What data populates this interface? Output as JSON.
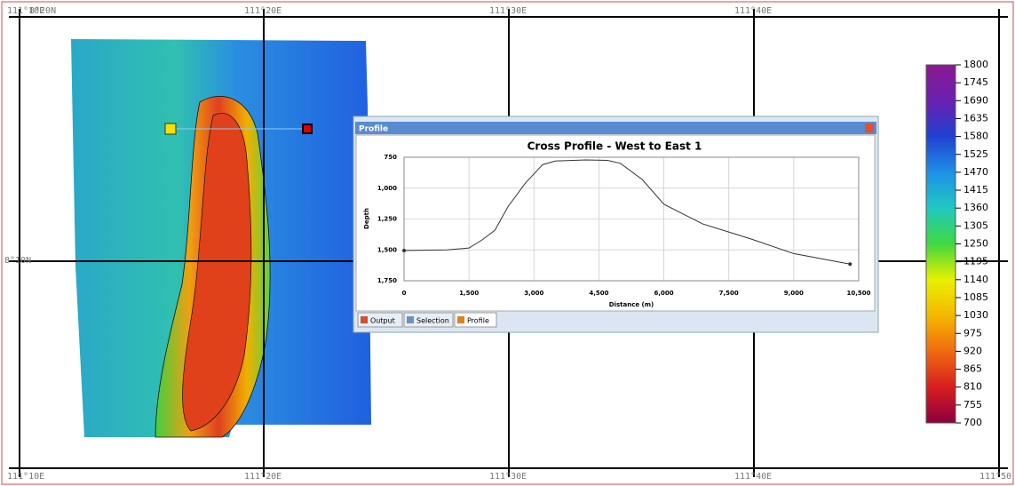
{
  "map": {
    "top_labels": [
      "111°10E",
      "111°20E",
      "111°30E",
      "111°40E"
    ],
    "bottom_labels": [
      "111°10E",
      "111°20E",
      "111°30E",
      "111°40E",
      "111°50"
    ],
    "left_labels": [
      "8°20N",
      "8°10N"
    ]
  },
  "colorbar": {
    "lim": [
      700,
      1800
    ],
    "ticks": [
      1800,
      1745,
      1690,
      1635,
      1580,
      1525,
      1470,
      1415,
      1360,
      1305,
      1250,
      1195,
      1140,
      1085,
      1030,
      975,
      920,
      865,
      810,
      755,
      700
    ],
    "colors": [
      "#8b0040",
      "#d81e1e",
      "#f06a10",
      "#f5b800",
      "#e8f000",
      "#40d840",
      "#20c8c0",
      "#1e90e8",
      "#2040d0",
      "#6a20b0",
      "#8a1a90"
    ]
  },
  "window": {
    "title": "Profile",
    "tabs": [
      "Output",
      "Selection",
      "Profile"
    ]
  },
  "chart_data": {
    "type": "line",
    "title": "Cross Profile - West to East 1",
    "x_label": "Distance (m)",
    "y_label": "Depth",
    "x": [
      0,
      1000,
      1500,
      1800,
      2100,
      2400,
      2800,
      3200,
      3500,
      4200,
      4700,
      5000,
      5500,
      6000,
      6900,
      8000,
      9000,
      10300
    ],
    "values": [
      1505,
      1500,
      1485,
      1420,
      1340,
      1150,
      960,
      810,
      780,
      772,
      775,
      800,
      930,
      1130,
      1290,
      1410,
      1530,
      1615
    ],
    "color": "#333333",
    "xlim": [
      0,
      10500
    ],
    "xticks": [
      0,
      {
        "value": 1500,
        "label": "1,500"
      },
      {
        "value": 3000,
        "label": "3,000"
      },
      {
        "value": 4500,
        "label": "4,500"
      },
      {
        "value": 6000,
        "label": "6,000"
      },
      {
        "value": 7500,
        "label": "7,500"
      },
      {
        "value": 9000,
        "label": "9,000"
      },
      {
        "value": 10500,
        "label": "10,500"
      }
    ],
    "ylim": [
      750,
      1750
    ],
    "y_inverted": true,
    "yticks": [
      750,
      {
        "value": 1000,
        "label": "1,000"
      },
      {
        "value": 1250,
        "label": "1,250"
      },
      {
        "value": 1500,
        "label": "1,500"
      },
      {
        "value": 1750,
        "label": "1,750"
      }
    ],
    "grid": true
  }
}
